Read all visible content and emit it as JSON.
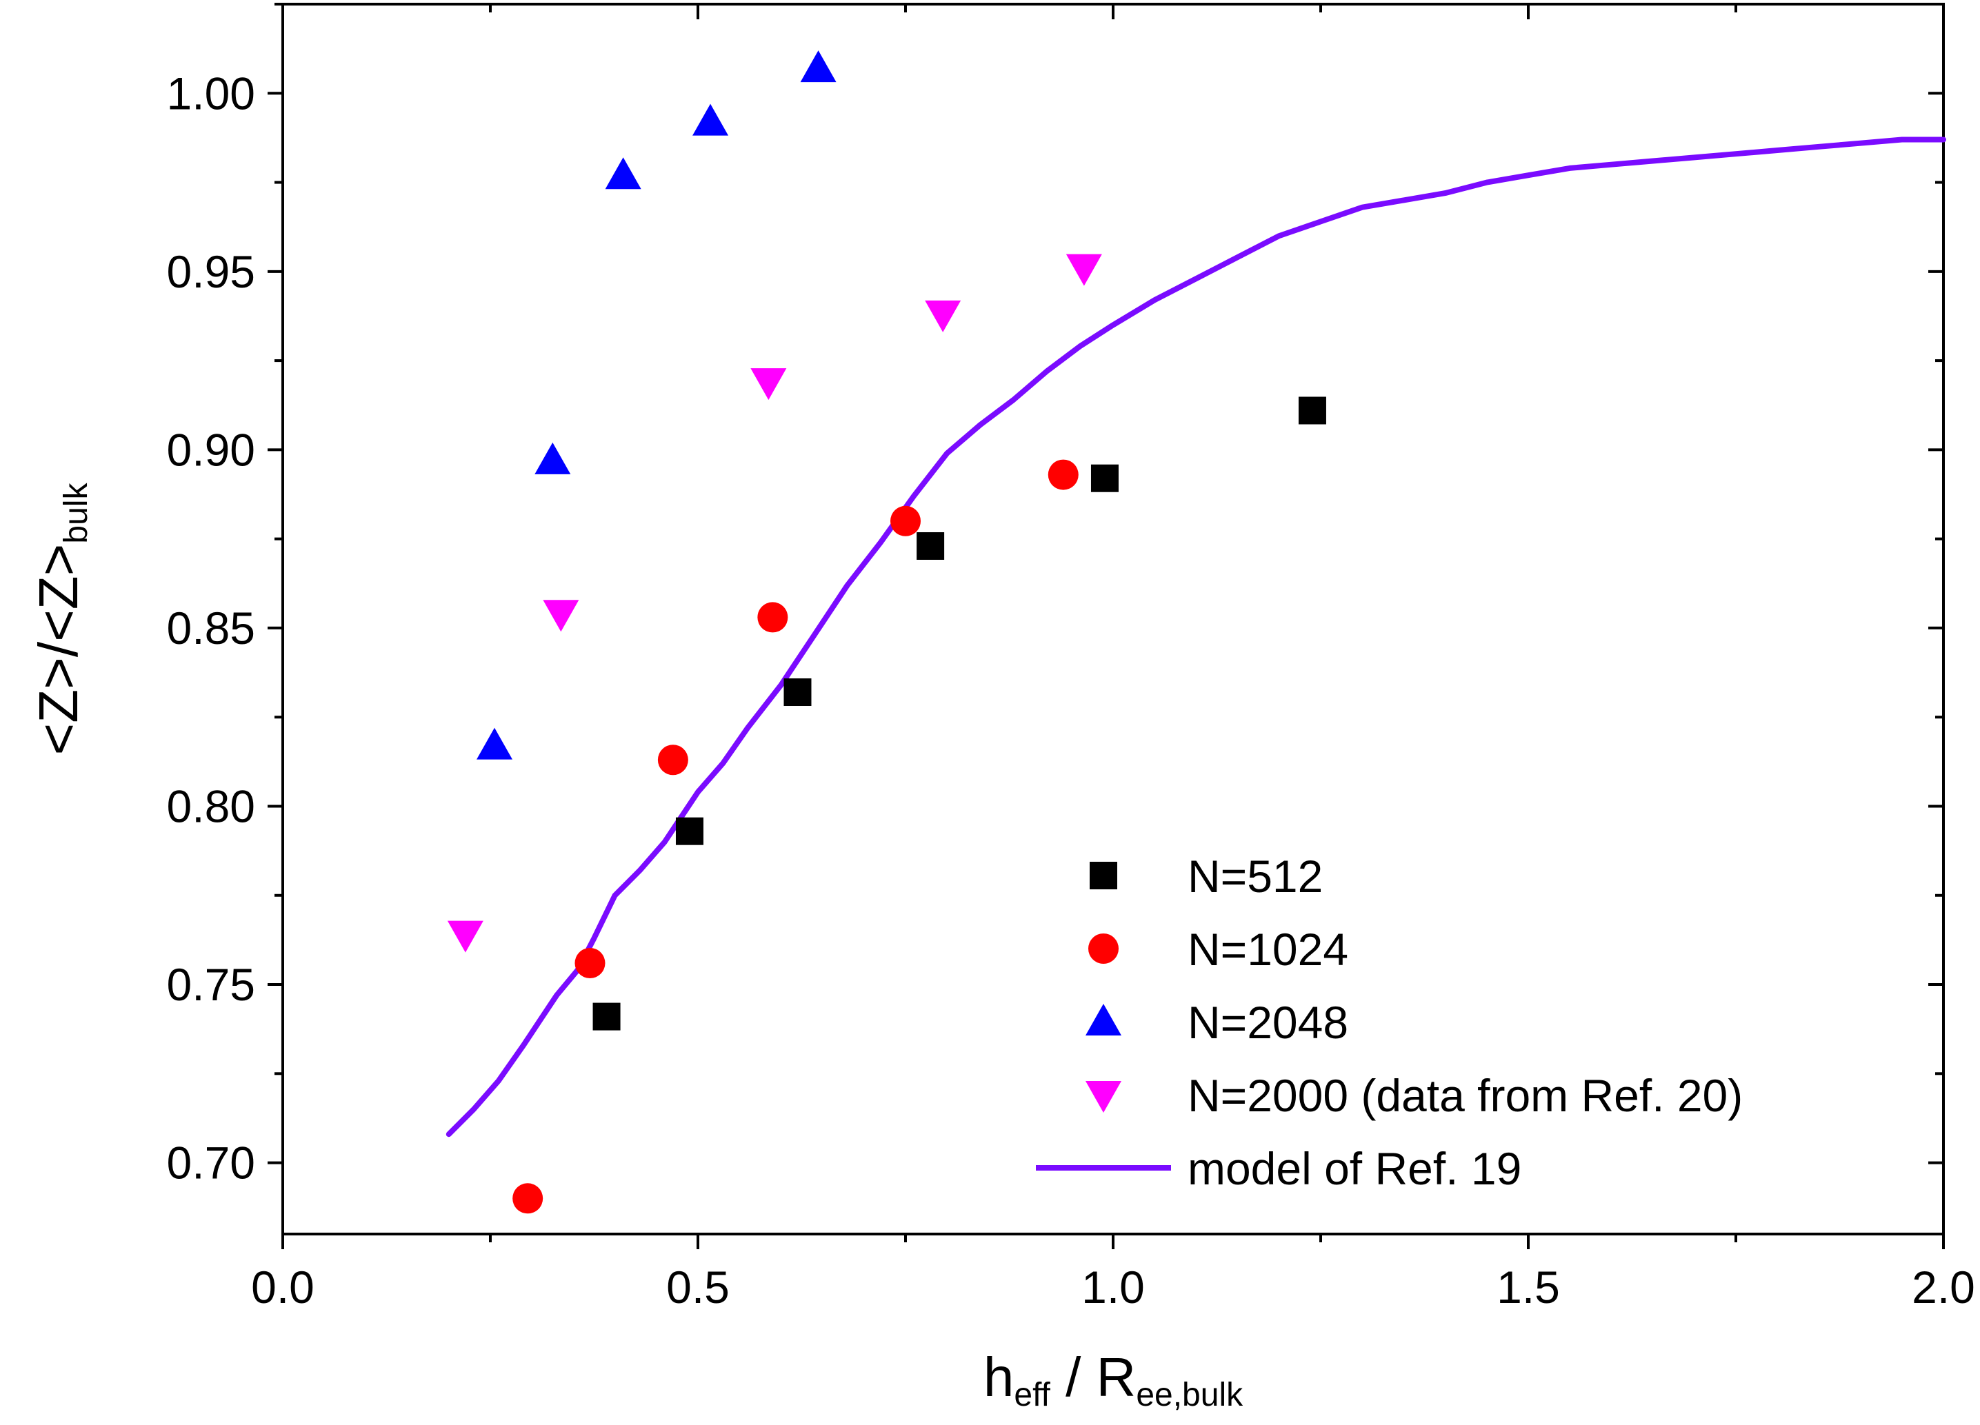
{
  "chart_data": {
    "type": "scatter",
    "title": "",
    "xlabel": {
      "main": "h",
      "main_sub": "eff",
      "sep": " / R",
      "sep_sub": "ee,bulk"
    },
    "ylabel": {
      "main": "<Z>/<Z>",
      "main_sub": "bulk"
    },
    "xlim": [
      0.0,
      2.0
    ],
    "ylim": [
      0.68,
      1.025
    ],
    "x_ticks": [
      {
        "value": 0.0,
        "label": "0.0"
      },
      {
        "value": 0.5,
        "label": "0.5"
      },
      {
        "value": 1.0,
        "label": "1.0"
      },
      {
        "value": 1.5,
        "label": "1.5"
      },
      {
        "value": 2.0,
        "label": "2.0"
      }
    ],
    "x_minor_ticks": [
      0.25,
      0.75,
      1.25,
      1.75
    ],
    "y_ticks": [
      {
        "value": 0.7,
        "label": "0.70"
      },
      {
        "value": 0.75,
        "label": "0.75"
      },
      {
        "value": 0.8,
        "label": "0.80"
      },
      {
        "value": 0.85,
        "label": "0.85"
      },
      {
        "value": 0.9,
        "label": "0.90"
      },
      {
        "value": 0.95,
        "label": "0.95"
      },
      {
        "value": 1.0,
        "label": "1.00"
      }
    ],
    "y_minor_ticks": [
      0.725,
      0.775,
      0.825,
      0.875,
      0.925,
      0.975,
      1.025
    ],
    "grid": false,
    "legend_position": "bottom-right",
    "series": [
      {
        "name": "N=512",
        "marker": "square",
        "color": "#000000",
        "points": [
          [
            0.39,
            0.741
          ],
          [
            0.49,
            0.793
          ],
          [
            0.62,
            0.832
          ],
          [
            0.78,
            0.873
          ],
          [
            0.99,
            0.892
          ],
          [
            1.24,
            0.911
          ]
        ]
      },
      {
        "name": "N=1024",
        "marker": "circle",
        "color": "#ff0000",
        "points": [
          [
            0.295,
            0.69
          ],
          [
            0.37,
            0.756
          ],
          [
            0.47,
            0.813
          ],
          [
            0.59,
            0.853
          ],
          [
            0.75,
            0.88
          ],
          [
            0.94,
            0.893
          ]
        ]
      },
      {
        "name": "N=2048",
        "marker": "triangle-up",
        "color": "#0000ff",
        "points": [
          [
            0.255,
            0.817
          ],
          [
            0.325,
            0.897
          ],
          [
            0.41,
            0.977
          ],
          [
            0.515,
            0.992
          ],
          [
            0.645,
            1.007
          ]
        ]
      },
      {
        "name": "N=2000 (data from Ref. 20)",
        "marker": "triangle-down",
        "color": "#ff00ff",
        "points": [
          [
            0.22,
            0.764
          ],
          [
            0.335,
            0.854
          ],
          [
            0.585,
            0.919
          ],
          [
            0.795,
            0.938
          ],
          [
            0.965,
            0.951
          ]
        ]
      },
      {
        "name": "model of Ref. 19",
        "marker": "line",
        "color": "#7a0bff",
        "points": [
          [
            0.2,
            0.708
          ],
          [
            0.23,
            0.715
          ],
          [
            0.26,
            0.723
          ],
          [
            0.29,
            0.733
          ],
          [
            0.31,
            0.74
          ],
          [
            0.33,
            0.747
          ],
          [
            0.355,
            0.754
          ],
          [
            0.375,
            0.763
          ],
          [
            0.4,
            0.775
          ],
          [
            0.43,
            0.782
          ],
          [
            0.46,
            0.79
          ],
          [
            0.48,
            0.797
          ],
          [
            0.5,
            0.804
          ],
          [
            0.53,
            0.812
          ],
          [
            0.56,
            0.822
          ],
          [
            0.6,
            0.834
          ],
          [
            0.64,
            0.848
          ],
          [
            0.68,
            0.862
          ],
          [
            0.72,
            0.874
          ],
          [
            0.76,
            0.887
          ],
          [
            0.8,
            0.899
          ],
          [
            0.84,
            0.907
          ],
          [
            0.88,
            0.914
          ],
          [
            0.92,
            0.922
          ],
          [
            0.96,
            0.929
          ],
          [
            1.0,
            0.935
          ],
          [
            1.05,
            0.942
          ],
          [
            1.1,
            0.948
          ],
          [
            1.15,
            0.954
          ],
          [
            1.2,
            0.96
          ],
          [
            1.25,
            0.964
          ],
          [
            1.3,
            0.968
          ],
          [
            1.35,
            0.97
          ],
          [
            1.4,
            0.972
          ],
          [
            1.45,
            0.975
          ],
          [
            1.5,
            0.977
          ],
          [
            1.55,
            0.979
          ],
          [
            1.6,
            0.98
          ],
          [
            1.65,
            0.981
          ],
          [
            1.7,
            0.982
          ],
          [
            1.75,
            0.983
          ],
          [
            1.8,
            0.984
          ],
          [
            1.85,
            0.985
          ],
          [
            1.9,
            0.986
          ],
          [
            1.95,
            0.987
          ],
          [
            2.0,
            0.987
          ]
        ]
      }
    ]
  }
}
